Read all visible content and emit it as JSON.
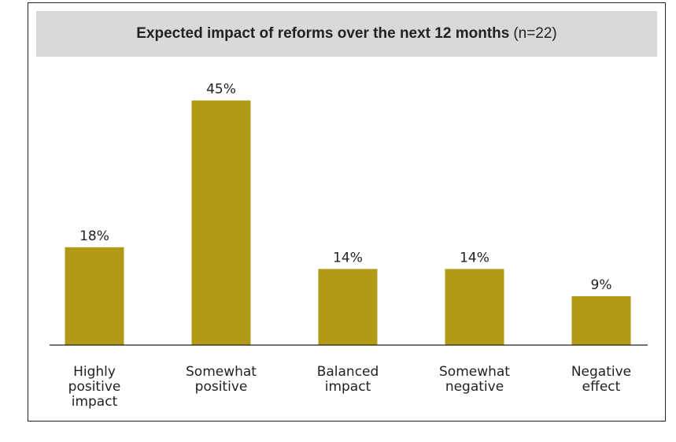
{
  "title_band": {
    "title": "Expected impact of reforms over the next 12 months",
    "note": "(n=22)"
  },
  "chart_data": {
    "type": "bar",
    "title": "Expected impact of reforms over the next 12 months",
    "subtitle": "(n=22)",
    "xlabel": "",
    "ylabel": "",
    "categories": [
      "Highly positive impact",
      "Somewhat positive",
      "Balanced impact",
      "Somewhat negative",
      "Negative effect"
    ],
    "category_lines": [
      [
        "Highly",
        "positive",
        "impact"
      ],
      [
        "Somewhat",
        "positive"
      ],
      [
        "Balanced",
        "impact"
      ],
      [
        "Somewhat",
        "negative"
      ],
      [
        "Negative",
        "effect"
      ]
    ],
    "values": [
      18,
      45,
      14,
      14,
      9
    ],
    "value_labels": [
      "18%",
      "45%",
      "14%",
      "14%",
      "9%"
    ],
    "unit": "%",
    "ylim": [
      0,
      50
    ],
    "grid": false,
    "legend": "none",
    "bar_color": "#b09a16",
    "axis_color": "#222222"
  }
}
